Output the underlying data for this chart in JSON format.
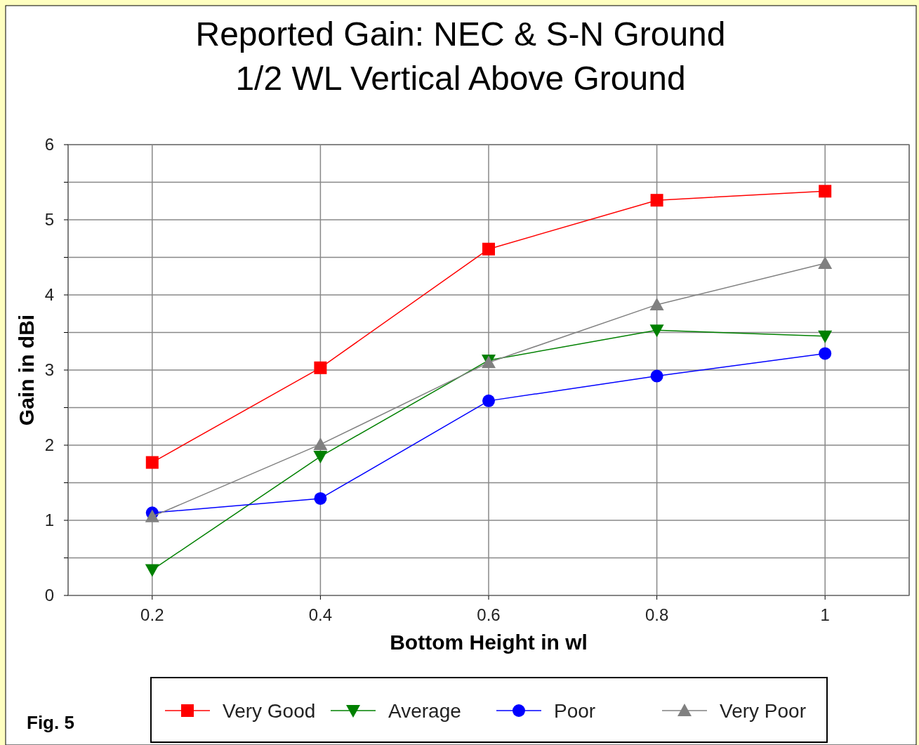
{
  "chart_data": {
    "type": "line",
    "title": "Reported Gain: NEC & S-N Ground\n1/2 WL Vertical Above Ground",
    "xlabel": "Bottom Height in wl",
    "ylabel": "Gain in dBi",
    "x": [
      0.2,
      0.4,
      0.6,
      0.8,
      1
    ],
    "series": [
      {
        "name": "Very Good",
        "color": "#ff0000",
        "marker": "square",
        "values": [
          1.77,
          3.03,
          4.61,
          5.26,
          5.38
        ]
      },
      {
        "name": "Average",
        "color": "#008000",
        "marker": "triangle-down",
        "values": [
          0.34,
          1.85,
          3.13,
          3.53,
          3.45
        ]
      },
      {
        "name": "Poor",
        "color": "#0000ff",
        "marker": "circle",
        "values": [
          1.1,
          1.29,
          2.59,
          2.92,
          3.22
        ]
      },
      {
        "name": "Very Poor",
        "color": "#808080",
        "marker": "triangle",
        "values": [
          1.05,
          2.01,
          3.1,
          3.87,
          4.42
        ]
      }
    ],
    "xlim": [
      0.1,
      1.1
    ],
    "xticks": [
      0.2,
      0.4,
      0.6,
      0.8,
      1
    ],
    "ylim": [
      0,
      6
    ],
    "yticks": [
      0,
      {
        "value": 0.5,
        "label": null
      },
      1,
      {
        "value": 1.5,
        "label": null
      },
      2,
      {
        "value": 2.5,
        "label": null
      },
      3,
      {
        "value": 3.5,
        "label": null
      },
      4,
      {
        "value": 4.5,
        "label": null
      },
      5,
      {
        "value": 5.5,
        "label": null
      },
      6
    ],
    "grid": true,
    "legend": "bottom",
    "line_style": "solid",
    "annotations": [
      "Fig. 5"
    ]
  }
}
